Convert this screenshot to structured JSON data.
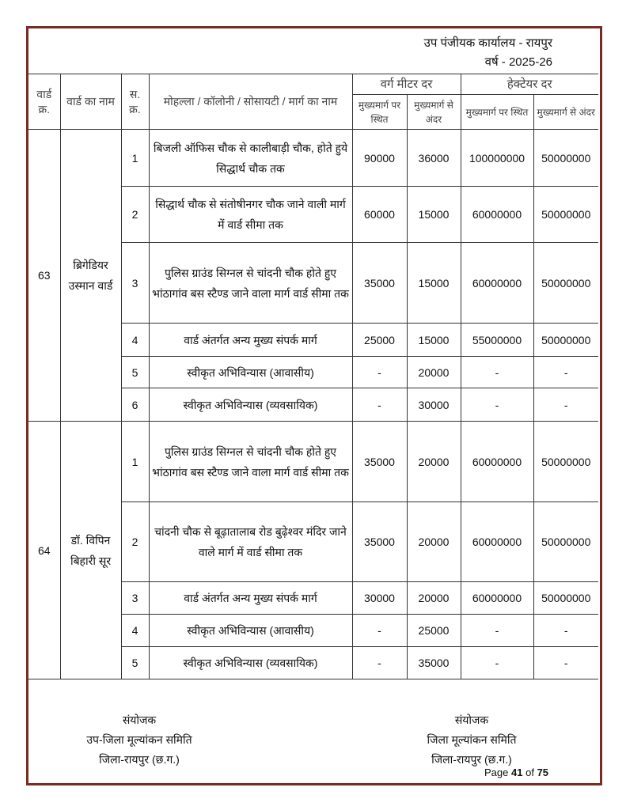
{
  "header": {
    "office": "उप पंजीयक कार्यालय - रायपुर",
    "year": "वर्ष - 2025-26"
  },
  "table": {
    "columns": {
      "ward_no": "वार्ड क्र.",
      "ward_name": "वार्ड का नाम",
      "serial": "स. क्र.",
      "locality": "मोहल्ला / कॉलोनी / सोसायटी / मार्ग का नाम",
      "sqm_group": "वर्ग मीटर दर",
      "hectare_group": "हेक्टेयर दर",
      "sqm_on_main": "मुख्यमार्ग पर स्थित",
      "sqm_inside": "मुख्यमार्ग से अंदर",
      "ha_on_main": "मुख्यमार्ग पर स्थित",
      "ha_inside": "मुख्यमार्ग से अंदर"
    },
    "wards": [
      {
        "no": "63",
        "name": "ब्रिगेडियर उस्मान वार्ड",
        "rows": [
          {
            "sr": "1",
            "locality": "बिजली ऑफिस चौक से कालीबाड़ी चौक, होते हुये सिद्धार्थ चौक तक",
            "sqm_main": "90000",
            "sqm_inside": "36000",
            "ha_main": "100000000",
            "ha_inside": "50000000"
          },
          {
            "sr": "2",
            "locality": "सिद्धार्थ चौक से संतोषीनगर चौक जाने वाली मार्ग में वार्ड सीमा तक",
            "sqm_main": "60000",
            "sqm_inside": "15000",
            "ha_main": "60000000",
            "ha_inside": "50000000"
          },
          {
            "sr": "3",
            "locality": "पुलिस ग्राउंड सिग्नल से चांदनी चौक होते हुए भांठागांव बस स्टैण्ड जाने वाला मार्ग वार्ड सीमा तक",
            "sqm_main": "35000",
            "sqm_inside": "15000",
            "ha_main": "60000000",
            "ha_inside": "50000000"
          },
          {
            "sr": "4",
            "locality": "वार्ड अंतर्गत अन्य मुख्य संपर्क मार्ग",
            "sqm_main": "25000",
            "sqm_inside": "15000",
            "ha_main": "55000000",
            "ha_inside": "50000000"
          },
          {
            "sr": "5",
            "locality": "स्वीकृत अभिविन्यास (आवासीय)",
            "sqm_main": "-",
            "sqm_inside": "20000",
            "ha_main": "-",
            "ha_inside": "-"
          },
          {
            "sr": "6",
            "locality": "स्वीकृत अभिविन्यास (व्यवसायिक)",
            "sqm_main": "-",
            "sqm_inside": "30000",
            "ha_main": "-",
            "ha_inside": "-"
          }
        ]
      },
      {
        "no": "64",
        "name": "डॉ. विपिन बिहारी सूर",
        "rows": [
          {
            "sr": "1",
            "locality": "पुलिस ग्राउंड सिग्नल से चांदनी चौक होते हुए भांठागांव बस स्टैण्ड जाने वाला मार्ग वार्ड सीमा तक",
            "sqm_main": "35000",
            "sqm_inside": "20000",
            "ha_main": "60000000",
            "ha_inside": "50000000"
          },
          {
            "sr": "2",
            "locality": "चांदनी चौक से बूढ़ातालाब रोड बुढ़ेश्वर मंदिर जाने वाले मार्ग में वार्ड सीमा तक",
            "sqm_main": "35000",
            "sqm_inside": "20000",
            "ha_main": "60000000",
            "ha_inside": "50000000"
          },
          {
            "sr": "3",
            "locality": "वार्ड अंतर्गत अन्य मुख्य संपर्क मार्ग",
            "sqm_main": "30000",
            "sqm_inside": "20000",
            "ha_main": "60000000",
            "ha_inside": "50000000"
          },
          {
            "sr": "4",
            "locality": "स्वीकृत अभिविन्यास (आवासीय)",
            "sqm_main": "-",
            "sqm_inside": "25000",
            "ha_main": "-",
            "ha_inside": "-"
          },
          {
            "sr": "5",
            "locality": "स्वीकृत अभिविन्यास (व्यवसायिक)",
            "sqm_main": "-",
            "sqm_inside": "35000",
            "ha_main": "-",
            "ha_inside": "-"
          }
        ]
      }
    ]
  },
  "footer": {
    "left": {
      "title": "संयोजक",
      "committee": "उप-जिला मूल्यांकन समिति",
      "district": "जिला-रायपुर (छ.ग.)"
    },
    "right": {
      "title": "संयोजक",
      "committee": "जिला मूल्यांकन समिति",
      "district": "जिला-रायपुर (छ.ग.)"
    },
    "page": {
      "prefix": "Page",
      "current": "41",
      "of": "of",
      "total": "75"
    }
  },
  "colors": {
    "border": "#7b2b24"
  }
}
